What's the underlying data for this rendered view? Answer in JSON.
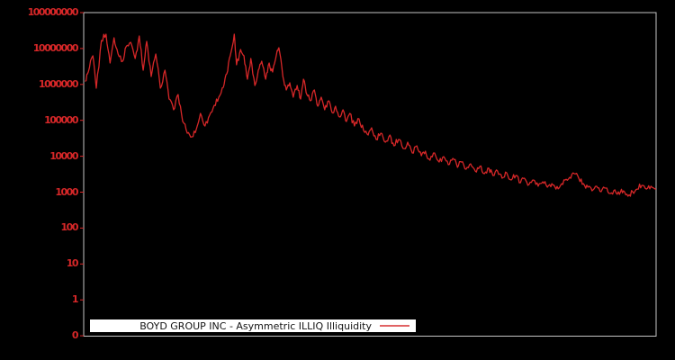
{
  "figure": {
    "background": "#000000"
  },
  "colors": {
    "frame": "#c4c4c4",
    "axis_tick_label": "#d62728",
    "line": "#d62728",
    "legend_background": "#ffffff",
    "legend_text": "#141414"
  },
  "chart_data": {
    "type": "line",
    "title": "",
    "xlabel": "",
    "ylabel": "",
    "y_scale": "symlog",
    "grid": false,
    "x_tick_labels": [],
    "y_tick_labels": [
      "100000000",
      "10000000",
      "1000000",
      "100000",
      "10000",
      "1000",
      "100",
      "10",
      "1",
      "0"
    ],
    "ylim": [
      0,
      100000000
    ],
    "legend": {
      "position": "bottom-inside-wide",
      "entries": [
        {
          "label": "BOYD GROUP INC - Asymmetric ILLIQ Illiquidity",
          "color": "#d62728"
        }
      ]
    },
    "series": [
      {
        "name": "BOYD GROUP INC - Asymmetric ILLIQ Illiquidity",
        "color": "#d62728",
        "points": [
          [
            0.003,
            1240000
          ],
          [
            0.008,
            2220000
          ],
          [
            0.016,
            6260000
          ],
          [
            0.022,
            785000
          ],
          [
            0.031,
            16700000
          ],
          [
            0.039,
            25000000
          ],
          [
            0.046,
            3950000
          ],
          [
            0.053,
            19900000
          ],
          [
            0.06,
            7030000
          ],
          [
            0.068,
            4430000
          ],
          [
            0.074,
            11200000
          ],
          [
            0.082,
            14900000
          ],
          [
            0.09,
            5270000
          ],
          [
            0.097,
            22300000
          ],
          [
            0.104,
            2490000
          ],
          [
            0.11,
            15800000
          ],
          [
            0.118,
            1660000
          ],
          [
            0.126,
            7030000
          ],
          [
            0.134,
            785000
          ],
          [
            0.142,
            2490000
          ],
          [
            0.149,
            393000
          ],
          [
            0.157,
            196000
          ],
          [
            0.165,
            525000
          ],
          [
            0.173,
            92700
          ],
          [
            0.181,
            43800
          ],
          [
            0.189,
            34800
          ],
          [
            0.197,
            58500
          ],
          [
            0.204,
            156000
          ],
          [
            0.212,
            69500
          ],
          [
            0.22,
            139000
          ],
          [
            0.228,
            262000
          ],
          [
            0.236,
            441000
          ],
          [
            0.244,
            832000
          ],
          [
            0.25,
            1980000
          ],
          [
            0.256,
            6260000
          ],
          [
            0.263,
            25000000
          ],
          [
            0.267,
            3520000
          ],
          [
            0.274,
            9380000
          ],
          [
            0.28,
            6260000
          ],
          [
            0.286,
            1400000
          ],
          [
            0.292,
            5270000
          ],
          [
            0.299,
            933000
          ],
          [
            0.305,
            2490000
          ],
          [
            0.311,
            4430000
          ],
          [
            0.318,
            1400000
          ],
          [
            0.324,
            3950000
          ],
          [
            0.33,
            2220000
          ],
          [
            0.337,
            7030000
          ],
          [
            0.341,
            10500000
          ],
          [
            0.348,
            1660000
          ],
          [
            0.354,
            700000
          ],
          [
            0.36,
            1110000
          ],
          [
            0.366,
            441000
          ],
          [
            0.373,
            933000
          ],
          [
            0.379,
            393000
          ],
          [
            0.384,
            1400000
          ],
          [
            0.39,
            525000
          ],
          [
            0.396,
            350000
          ],
          [
            0.403,
            700000
          ],
          [
            0.409,
            247000
          ],
          [
            0.415,
            441000
          ],
          [
            0.421,
            196000
          ],
          [
            0.428,
            350000
          ],
          [
            0.434,
            165000
          ],
          [
            0.44,
            247000
          ],
          [
            0.447,
            124000
          ],
          [
            0.453,
            196000
          ],
          [
            0.459,
            92700
          ],
          [
            0.465,
            156000
          ],
          [
            0.473,
            69500
          ],
          [
            0.481,
            110000
          ],
          [
            0.489,
            52100
          ],
          [
            0.497,
            39000
          ],
          [
            0.503,
            61900
          ],
          [
            0.511,
            29200
          ],
          [
            0.519,
            43800
          ],
          [
            0.527,
            24600
          ],
          [
            0.535,
            39000
          ],
          [
            0.542,
            19500
          ],
          [
            0.55,
            29200
          ],
          [
            0.558,
            16400
          ],
          [
            0.566,
            24600
          ],
          [
            0.574,
            12300
          ],
          [
            0.582,
            19500
          ],
          [
            0.59,
            10300
          ],
          [
            0.597,
            13800
          ],
          [
            0.605,
            7760
          ],
          [
            0.613,
            12300
          ],
          [
            0.621,
            6920
          ],
          [
            0.629,
            9770
          ],
          [
            0.637,
            5810
          ],
          [
            0.645,
            8710
          ],
          [
            0.653,
            4890
          ],
          [
            0.66,
            6920
          ],
          [
            0.668,
            4360
          ],
          [
            0.676,
            6150
          ],
          [
            0.684,
            3880
          ],
          [
            0.692,
            5180
          ],
          [
            0.7,
            3270
          ],
          [
            0.708,
            4610
          ],
          [
            0.715,
            2910
          ],
          [
            0.723,
            3880
          ],
          [
            0.731,
            2450
          ],
          [
            0.739,
            3460
          ],
          [
            0.747,
            2180
          ],
          [
            0.755,
            2910
          ],
          [
            0.763,
            1830
          ],
          [
            0.77,
            2450
          ],
          [
            0.778,
            1630
          ],
          [
            0.786,
            2180
          ],
          [
            0.794,
            1460
          ],
          [
            0.802,
            1940
          ],
          [
            0.81,
            1370
          ],
          [
            0.818,
            1730
          ],
          [
            0.825,
            1220
          ],
          [
            0.833,
            1540
          ],
          [
            0.841,
            2180
          ],
          [
            0.849,
            2590
          ],
          [
            0.857,
            3270
          ],
          [
            0.865,
            2450
          ],
          [
            0.873,
            1730
          ],
          [
            0.881,
            1370
          ],
          [
            0.888,
            1090
          ],
          [
            0.896,
            1460
          ],
          [
            0.904,
            1030
          ],
          [
            0.912,
            1300
          ],
          [
            0.92,
            917
          ],
          [
            0.928,
            1160
          ],
          [
            0.936,
            866
          ],
          [
            0.943,
            1090
          ],
          [
            0.951,
            771
          ],
          [
            0.959,
            1030
          ],
          [
            0.967,
            1220
          ],
          [
            0.975,
            1540
          ],
          [
            0.983,
            1220
          ],
          [
            0.991,
            1460
          ],
          [
            0.999,
            1220
          ]
        ]
      }
    ]
  }
}
